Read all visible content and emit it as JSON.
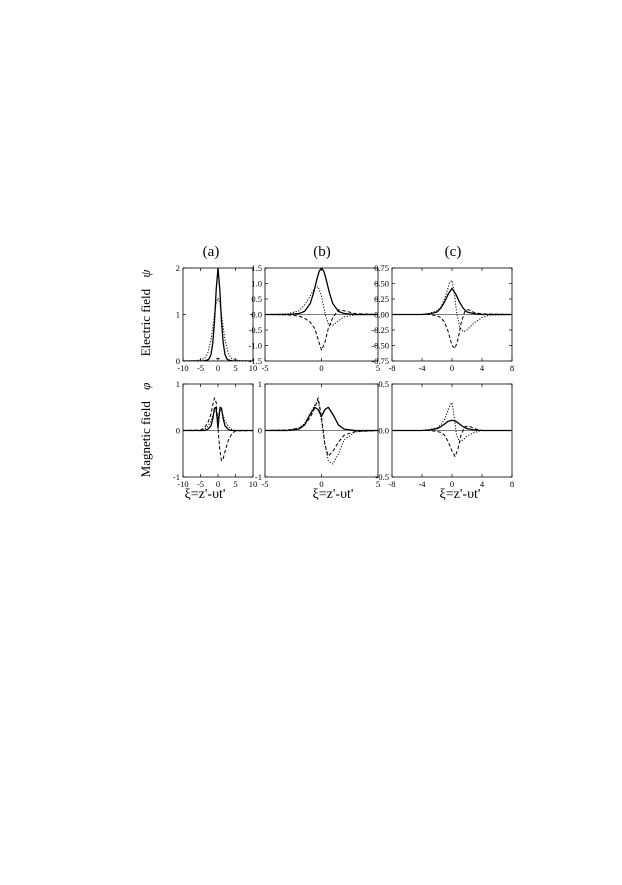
{
  "figure": {
    "panel_labels": [
      "(a)",
      "(b)",
      "(c)"
    ],
    "row_labels": [
      "Electric field",
      "Magnetic field"
    ],
    "row_symbols": [
      "ψ",
      "φ"
    ],
    "xlabel": "ξ=z'-υt'"
  },
  "chart_data": [
    {
      "id": "a-top",
      "type": "line",
      "title": "(a)",
      "xlim": [
        -10,
        10
      ],
      "ylim": [
        0,
        2
      ],
      "xticks": [
        -10,
        -5,
        0,
        5,
        10
      ],
      "yticks": [
        0,
        1,
        2
      ],
      "xticklabels": [
        "-10",
        "-5",
        "0",
        "5",
        "10"
      ],
      "yticklabels": [
        "0",
        "1",
        "2"
      ],
      "show_xticklabels": true,
      "ylabel": "Electric field ψ",
      "series": [
        {
          "style": "solid",
          "x": [
            -10,
            -6,
            -4,
            -3,
            -2.5,
            -2,
            -1.5,
            -1,
            -0.5,
            0,
            0.5,
            1,
            1.5,
            2,
            2.5,
            3,
            4,
            6,
            10
          ],
          "y": [
            0,
            0,
            0.005,
            0.02,
            0.05,
            0.14,
            0.38,
            0.85,
            1.55,
            2.0,
            1.55,
            0.85,
            0.38,
            0.14,
            0.05,
            0.02,
            0.005,
            0,
            0
          ]
        },
        {
          "style": "dotted",
          "x": [
            -10,
            -6,
            -4,
            -3,
            -2,
            -1.5,
            -1,
            -0.5,
            0,
            0.5,
            1,
            1.5,
            2,
            3,
            4,
            6,
            10
          ],
          "y": [
            0,
            0.01,
            0.05,
            0.15,
            0.45,
            0.72,
            1.0,
            1.25,
            1.35,
            1.25,
            1.0,
            0.72,
            0.45,
            0.15,
            0.05,
            0.01,
            0
          ]
        },
        {
          "style": "dashed",
          "x": [
            -10,
            -1,
            -0.5,
            0,
            0.5,
            1,
            10
          ],
          "y": [
            0,
            0,
            0.04,
            0.06,
            0.04,
            0,
            0
          ]
        }
      ]
    },
    {
      "id": "b-top",
      "type": "line",
      "title": "(b)",
      "xlim": [
        -5,
        5
      ],
      "ylim": [
        -1.5,
        1.5
      ],
      "xticks": [
        -5,
        0,
        5
      ],
      "yticks": [
        -1.5,
        -1.0,
        -0.5,
        0.0,
        0.5,
        1.0,
        1.5
      ],
      "xticklabels": [
        "-5",
        "0",
        "5"
      ],
      "yticklabels": [
        "-1.5",
        "-1.0",
        "-0.5",
        "0.0",
        "0.5",
        "1.0",
        "1.5"
      ],
      "show_xticklabels": true,
      "ylabel": "",
      "series": [
        {
          "style": "solid",
          "x": [
            -5,
            -3,
            -2,
            -1.5,
            -1,
            -0.7,
            -0.4,
            -0.2,
            0,
            0.2,
            0.4,
            0.7,
            1,
            1.5,
            2,
            3,
            5
          ],
          "y": [
            0,
            0,
            0.03,
            0.1,
            0.35,
            0.7,
            1.15,
            1.4,
            1.5,
            1.4,
            1.15,
            0.7,
            0.35,
            0.1,
            0.03,
            0,
            0
          ]
        },
        {
          "style": "dotted",
          "x": [
            -5,
            -3,
            -2,
            -1.5,
            -1,
            -0.6,
            -0.3,
            0,
            0.3,
            0.6,
            1,
            1.5,
            2,
            3,
            5
          ],
          "y": [
            0,
            0.02,
            0.12,
            0.3,
            0.6,
            0.85,
            0.9,
            0.6,
            0.05,
            -0.3,
            -0.35,
            -0.2,
            -0.08,
            -0.01,
            0
          ]
        },
        {
          "style": "dashed",
          "x": [
            -5,
            -3,
            -2,
            -1.5,
            -1,
            -0.6,
            -0.3,
            0,
            0.3,
            0.6,
            1,
            1.5,
            2,
            3,
            5
          ],
          "y": [
            0,
            -0.01,
            -0.05,
            -0.12,
            -0.25,
            -0.45,
            -0.8,
            -1.15,
            -0.9,
            -0.45,
            -0.1,
            0.15,
            0.12,
            0.03,
            0
          ]
        }
      ]
    },
    {
      "id": "c-top",
      "type": "line",
      "title": "(c)",
      "xlim": [
        -8,
        8
      ],
      "ylim": [
        -0.75,
        0.75
      ],
      "xticks": [
        -8,
        -4,
        0,
        4,
        8
      ],
      "yticks": [
        -0.75,
        -0.5,
        -0.25,
        0.0,
        0.25,
        0.5,
        0.75
      ],
      "xticklabels": [
        "-8",
        "-4",
        "0",
        "4",
        "8"
      ],
      "yticklabels": [
        "-0.75",
        "-0.50",
        "-0.25",
        "0.00",
        "0.25",
        "0.50",
        "0.75"
      ],
      "show_xticklabels": true,
      "ylabel": "",
      "series": [
        {
          "style": "solid",
          "x": [
            -8,
            -4,
            -3,
            -2,
            -1.5,
            -1,
            -0.5,
            0,
            0.5,
            1,
            1.5,
            2,
            3,
            4,
            8
          ],
          "y": [
            0,
            0,
            0.01,
            0.04,
            0.1,
            0.2,
            0.33,
            0.42,
            0.33,
            0.2,
            0.1,
            0.04,
            0.01,
            0,
            0
          ]
        },
        {
          "style": "dotted",
          "x": [
            -8,
            -4,
            -3,
            -2,
            -1.5,
            -1,
            -0.6,
            -0.3,
            0,
            0.3,
            0.6,
            1,
            1.5,
            2,
            3,
            4,
            5,
            8
          ],
          "y": [
            0,
            0,
            0.02,
            0.06,
            0.12,
            0.25,
            0.4,
            0.52,
            0.55,
            0.35,
            0.05,
            -0.2,
            -0.28,
            -0.25,
            -0.13,
            -0.05,
            -0.01,
            0
          ]
        },
        {
          "style": "dashed",
          "x": [
            -8,
            -4,
            -3,
            -2,
            -1.5,
            -1,
            -0.5,
            0,
            0.4,
            0.8,
            1.2,
            1.7,
            2.2,
            3,
            4,
            8
          ],
          "y": [
            0,
            0,
            0,
            -0.02,
            -0.05,
            -0.12,
            -0.28,
            -0.5,
            -0.55,
            -0.4,
            -0.15,
            0.05,
            0.08,
            0.03,
            0.01,
            0
          ]
        }
      ]
    },
    {
      "id": "a-bottom",
      "type": "line",
      "title": "",
      "xlim": [
        -10,
        10
      ],
      "ylim": [
        -1,
        1
      ],
      "xticks": [
        -10,
        -5,
        0,
        5,
        10
      ],
      "yticks": [
        -1,
        0,
        1
      ],
      "xticklabels": [
        "-10",
        "-5",
        "0",
        "5",
        "10"
      ],
      "yticklabels": [
        "-1",
        "0",
        "1"
      ],
      "show_xticklabels": true,
      "ylabel": "Magnetic field φ",
      "series": [
        {
          "style": "solid",
          "x": [
            -10,
            -4,
            -3,
            -2,
            -1.5,
            -1,
            -0.6,
            -0.3,
            0,
            0.3,
            0.6,
            1,
            1.5,
            2,
            3,
            4,
            10
          ],
          "y": [
            0,
            0,
            0.02,
            0.1,
            0.25,
            0.48,
            0.5,
            0.3,
            0.05,
            0.3,
            0.5,
            0.48,
            0.25,
            0.1,
            0.02,
            0,
            0
          ]
        },
        {
          "style": "dotted",
          "x": [
            -10,
            -5,
            -4,
            -3,
            -2,
            -1.5,
            -1,
            -0.6,
            -0.3,
            0,
            0.3,
            0.6,
            1,
            1.5,
            2,
            3,
            4,
            5,
            10
          ],
          "y": [
            0,
            0,
            0.02,
            0.08,
            0.2,
            0.32,
            0.42,
            0.45,
            0.4,
            0.25,
            0.4,
            0.45,
            0.42,
            0.32,
            0.2,
            0.08,
            0.02,
            0,
            0
          ]
        },
        {
          "style": "dashed",
          "x": [
            -10,
            -5,
            -4,
            -3,
            -2,
            -1.5,
            -1,
            -0.5,
            0,
            0.5,
            1,
            1.5,
            2,
            3,
            4,
            5,
            10
          ],
          "y": [
            0,
            0.01,
            0.05,
            0.15,
            0.35,
            0.55,
            0.7,
            0.6,
            0.05,
            -0.4,
            -0.65,
            -0.6,
            -0.45,
            -0.2,
            -0.06,
            -0.01,
            0
          ]
        }
      ]
    },
    {
      "id": "b-bottom",
      "type": "line",
      "title": "",
      "xlim": [
        -5,
        5
      ],
      "ylim": [
        -1,
        1
      ],
      "xticks": [
        -5,
        0,
        5
      ],
      "yticks": [
        -1,
        0,
        1
      ],
      "xticklabels": [
        "-5",
        "0",
        "5"
      ],
      "yticklabels": [
        "-1",
        "0",
        "1"
      ],
      "show_xticklabels": true,
      "ylabel": "",
      "series": [
        {
          "style": "solid",
          "x": [
            -5,
            -3,
            -2,
            -1.5,
            -1,
            -0.6,
            -0.3,
            0,
            0.3,
            0.6,
            1,
            1.5,
            2,
            3,
            5
          ],
          "y": [
            0,
            0,
            0.03,
            0.12,
            0.35,
            0.5,
            0.45,
            0.3,
            0.45,
            0.5,
            0.35,
            0.12,
            0.03,
            0,
            0
          ]
        },
        {
          "style": "dotted",
          "x": [
            -5,
            -3,
            -2,
            -1.5,
            -1,
            -0.6,
            -0.3,
            0,
            0.3,
            0.6,
            1,
            1.5,
            2,
            3,
            5
          ],
          "y": [
            0,
            0.01,
            0.05,
            0.15,
            0.35,
            0.55,
            0.65,
            0.2,
            -0.3,
            -0.65,
            -0.72,
            -0.5,
            -0.2,
            -0.03,
            0
          ]
        },
        {
          "style": "dashed",
          "x": [
            -5,
            -3,
            -2,
            -1.5,
            -1,
            -0.6,
            -0.3,
            0,
            0.3,
            0.6,
            1,
            1.5,
            2,
            3,
            5
          ],
          "y": [
            0,
            0.01,
            0.05,
            0.12,
            0.28,
            0.48,
            0.7,
            0.3,
            -0.3,
            -0.55,
            -0.45,
            -0.25,
            -0.1,
            -0.02,
            0
          ]
        }
      ]
    },
    {
      "id": "c-bottom",
      "type": "line",
      "title": "",
      "xlim": [
        -8,
        8
      ],
      "ylim": [
        -0.5,
        0.5
      ],
      "xticks": [
        -8,
        -4,
        0,
        4,
        8
      ],
      "yticks": [
        -0.5,
        0.0,
        0.5
      ],
      "xticklabels": [
        "-8",
        "-4",
        "0",
        "4",
        "8"
      ],
      "yticklabels": [
        "-0.5",
        "0.0",
        "0.5"
      ],
      "show_xticklabels": true,
      "ylabel": "",
      "series": [
        {
          "style": "solid",
          "x": [
            -8,
            -4,
            -3,
            -2,
            -1.5,
            -1,
            -0.5,
            0,
            0.5,
            1,
            1.5,
            2,
            3,
            4,
            8
          ],
          "y": [
            0,
            0,
            0.005,
            0.02,
            0.04,
            0.07,
            0.1,
            0.11,
            0.1,
            0.07,
            0.04,
            0.02,
            0.005,
            0,
            0
          ]
        },
        {
          "style": "dotted",
          "x": [
            -8,
            -4,
            -3,
            -2,
            -1.5,
            -1,
            -0.5,
            -0.2,
            0,
            0.3,
            0.6,
            1,
            1.5,
            2,
            3,
            4,
            8
          ],
          "y": [
            0,
            0,
            0.01,
            0.03,
            0.06,
            0.12,
            0.22,
            0.28,
            0.3,
            0.15,
            -0.05,
            -0.12,
            -0.1,
            -0.06,
            -0.02,
            0,
            0
          ]
        },
        {
          "style": "dashed",
          "x": [
            -8,
            -4,
            -3,
            -2,
            -1.5,
            -1,
            -0.5,
            0,
            0.4,
            0.8,
            1.2,
            1.7,
            2.2,
            3,
            4,
            8
          ],
          "y": [
            0,
            0,
            0,
            -0.01,
            -0.02,
            -0.05,
            -0.12,
            -0.22,
            -0.28,
            -0.2,
            -0.05,
            0.04,
            0.05,
            0.02,
            0,
            0
          ]
        }
      ]
    }
  ]
}
